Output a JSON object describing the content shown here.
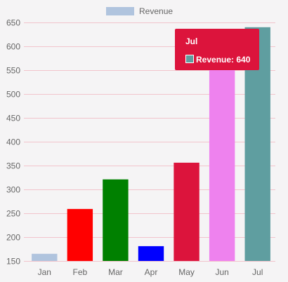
{
  "chart_data": {
    "type": "bar",
    "categories": [
      "Jan",
      "Feb",
      "Mar",
      "Apr",
      "May",
      "Jun",
      "Jul"
    ],
    "series": [
      {
        "name": "Revenue",
        "values": [
          165,
          259,
          321,
          181,
          356,
          555,
          640
        ]
      }
    ],
    "bar_colors": [
      "#b0c4de",
      "#ff0000",
      "#008000",
      "#0000ff",
      "#dc143c",
      "#ee82ee",
      "#5f9ea0"
    ],
    "legend_color": "#b0c4de",
    "ylim": [
      150,
      650
    ],
    "yticks": [
      150,
      200,
      250,
      300,
      350,
      400,
      450,
      500,
      550,
      600,
      650
    ],
    "grid": true,
    "grid_color": "#f2c4cc",
    "legend_position": "top-center",
    "tooltip": {
      "title": "Jul",
      "label": "Revenue: 640",
      "background": "#dc143c",
      "swatch_color": "#5f9ea0"
    }
  }
}
